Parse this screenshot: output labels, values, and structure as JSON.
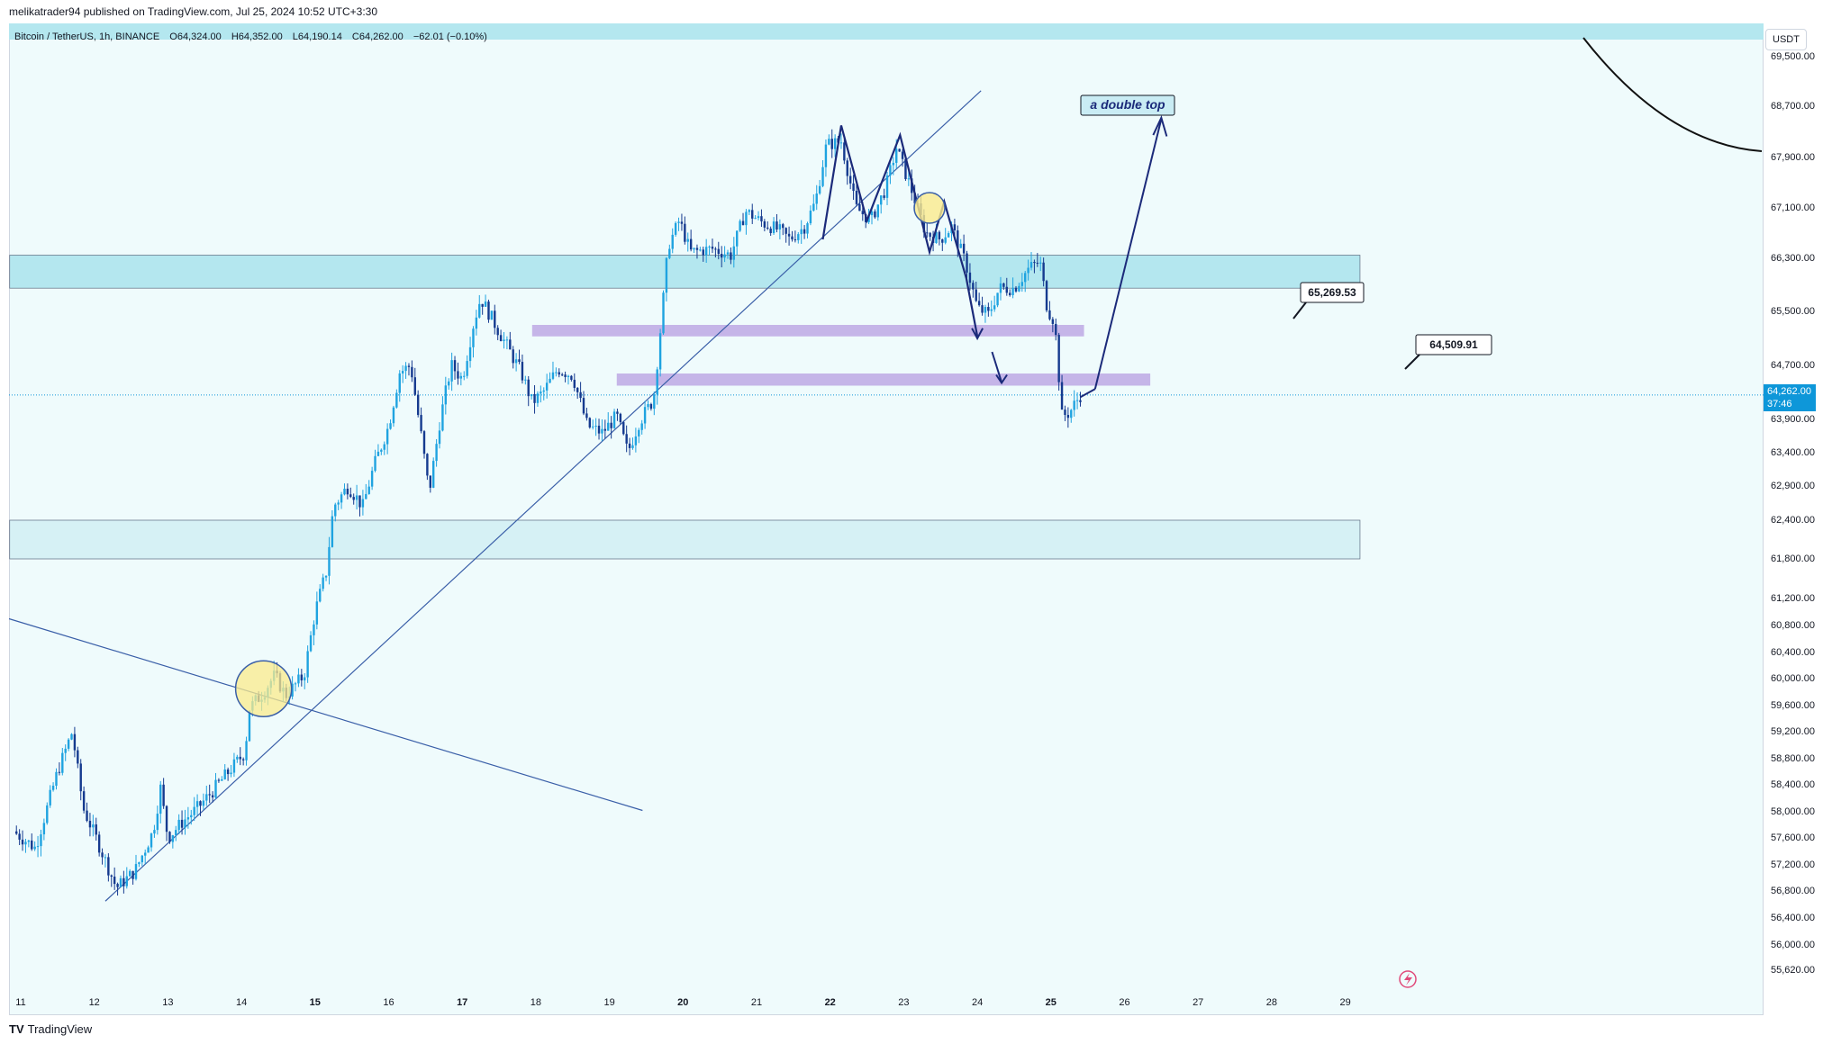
{
  "header": {
    "publisher": "melikatrader94 published on TradingView.com, Jul 25, 2024 10:52 UTC+3:30"
  },
  "symbol": {
    "name": "Bitcoin / TetherUS, 1h, BINANCE",
    "open": "O64,324.00",
    "high": "H64,352.00",
    "low": "L64,190.14",
    "close": "C64,262.00",
    "change": "−62.01 (−0.10%)"
  },
  "price_scale": {
    "currency": "USDT",
    "last_price": "64,262.00",
    "countdown": "37:46"
  },
  "colors": {
    "bull": "#1fa3e0",
    "bear": "#153a8f",
    "zone_fill": "#b4e7ef",
    "purple_zone": "#c5b5e8",
    "trendline": "#3a5fa8",
    "drawing": "#1b2a7a"
  },
  "chart_data": {
    "type": "candlestick",
    "symbol": "BTCUSDT",
    "interval": "1h",
    "x_ticks": [
      "11",
      "12",
      "13",
      "14",
      "15",
      "16",
      "17",
      "18",
      "19",
      "20",
      "21",
      "22",
      "23",
      "24",
      "25",
      "26",
      "27",
      "28",
      "29"
    ],
    "y_ticks": [
      69500,
      68700,
      67900,
      67100,
      66300,
      65500,
      64700,
      63900,
      63400,
      62900,
      62400,
      61800,
      61200,
      60800,
      60400,
      60000,
      59600,
      59200,
      58800,
      58400,
      58000,
      57600,
      57200,
      56800,
      56400,
      56000,
      55620
    ],
    "ylim": [
      55400,
      70000
    ],
    "anchors": [
      [
        10.9,
        57700
      ],
      [
        11.2,
        57450
      ],
      [
        11.5,
        58600
      ],
      [
        11.7,
        59200
      ],
      [
        11.85,
        58050
      ],
      [
        12.1,
        57400
      ],
      [
        12.3,
        56850
      ],
      [
        12.55,
        57100
      ],
      [
        12.8,
        57700
      ],
      [
        12.9,
        58350
      ],
      [
        13.0,
        57600
      ],
      [
        13.2,
        57850
      ],
      [
        13.4,
        58050
      ],
      [
        13.6,
        58300
      ],
      [
        13.9,
        58700
      ],
      [
        14.05,
        58900
      ],
      [
        14.1,
        59550
      ],
      [
        14.3,
        59800
      ],
      [
        14.45,
        60050
      ],
      [
        14.6,
        59750
      ],
      [
        14.85,
        60050
      ],
      [
        15.0,
        61000
      ],
      [
        15.15,
        61600
      ],
      [
        15.25,
        62600
      ],
      [
        15.45,
        62900
      ],
      [
        15.65,
        62600
      ],
      [
        15.8,
        63200
      ],
      [
        16.0,
        63800
      ],
      [
        16.15,
        64600
      ],
      [
        16.3,
        64700
      ],
      [
        16.45,
        63600
      ],
      [
        16.55,
        62800
      ],
      [
        16.7,
        63900
      ],
      [
        16.85,
        64700
      ],
      [
        17.0,
        64500
      ],
      [
        17.15,
        65300
      ],
      [
        17.25,
        65700
      ],
      [
        17.4,
        65400
      ],
      [
        17.6,
        65000
      ],
      [
        17.8,
        64600
      ],
      [
        17.95,
        64150
      ],
      [
        18.1,
        64300
      ],
      [
        18.3,
        64650
      ],
      [
        18.5,
        64550
      ],
      [
        18.7,
        63800
      ],
      [
        18.9,
        63700
      ],
      [
        19.1,
        63950
      ],
      [
        19.25,
        63400
      ],
      [
        19.4,
        63850
      ],
      [
        19.6,
        64200
      ],
      [
        19.7,
        65300
      ],
      [
        19.8,
        66500
      ],
      [
        19.95,
        66900
      ],
      [
        20.1,
        66400
      ],
      [
        20.4,
        66450
      ],
      [
        20.65,
        66350
      ],
      [
        20.85,
        67050
      ],
      [
        21.1,
        66850
      ],
      [
        21.3,
        66750
      ],
      [
        21.45,
        66600
      ],
      [
        21.65,
        66800
      ],
      [
        21.8,
        67200
      ],
      [
        21.95,
        68100
      ],
      [
        22.15,
        68150
      ],
      [
        22.35,
        67100
      ],
      [
        22.55,
        66900
      ],
      [
        22.75,
        67400
      ],
      [
        22.9,
        68050
      ],
      [
        23.1,
        67400
      ],
      [
        23.3,
        66700
      ],
      [
        23.5,
        66600
      ],
      [
        23.65,
        66800
      ],
      [
        23.85,
        66200
      ],
      [
        24.0,
        65550
      ],
      [
        24.15,
        65450
      ],
      [
        24.3,
        65850
      ],
      [
        24.5,
        65850
      ],
      [
        24.7,
        66150
      ],
      [
        24.85,
        66250
      ],
      [
        24.95,
        65550
      ],
      [
        25.05,
        65350
      ],
      [
        25.15,
        63950
      ],
      [
        25.25,
        64000
      ],
      [
        25.4,
        64262
      ]
    ],
    "annotations": {
      "double_top_label": "a double top",
      "price_label_1": "65,269.53",
      "price_label_2": "64,509.91"
    },
    "zones": [
      {
        "kind": "supply",
        "from": 66350,
        "to": 65850,
        "x_start": 10.85,
        "x_end": 29.2
      },
      {
        "kind": "demand",
        "from": 62400,
        "to": 61800,
        "x_start": 10.85,
        "x_end": 29.2
      },
      {
        "kind": "level",
        "from": 65300,
        "to": 65130,
        "x_start": 17.95,
        "x_end": 25.45
      },
      {
        "kind": "level",
        "from": 64580,
        "to": 64400,
        "x_start": 19.1,
        "x_end": 26.35
      }
    ],
    "last_price": 64262,
    "grid": false
  }
}
